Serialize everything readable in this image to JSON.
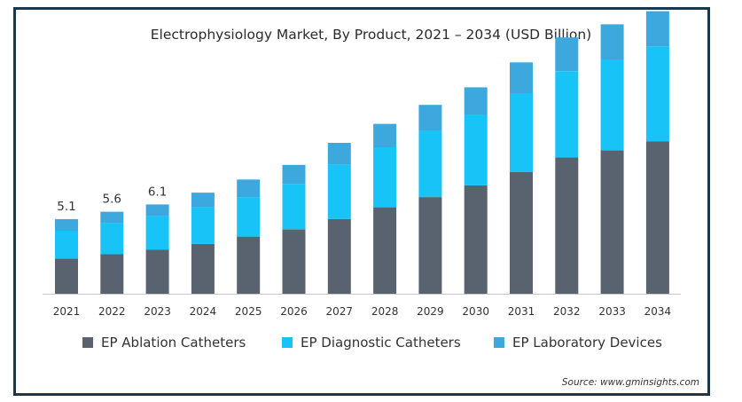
{
  "chart_data": {
    "type": "bar",
    "stacked": true,
    "title": "Electrophysiology Market, By Product, 2021 – 2034 (USD Billion)",
    "categories": [
      "2021",
      "2022",
      "2023",
      "2024",
      "2025",
      "2026",
      "2027",
      "2028",
      "2029",
      "2030",
      "2031",
      "2032",
      "2033",
      "2034"
    ],
    "series": [
      {
        "name": "EP Ablation Catheters",
        "color": "#596370",
        "values": [
          2.4,
          2.7,
          3.0,
          3.4,
          3.9,
          4.4,
          5.1,
          5.9,
          6.6,
          7.4,
          8.3,
          9.3,
          9.8,
          10.4
        ]
      },
      {
        "name": "EP Diagnostic Catheters",
        "color": "#17c3f7",
        "values": [
          1.9,
          2.1,
          2.3,
          2.5,
          2.7,
          3.1,
          3.7,
          4.1,
          4.5,
          4.8,
          5.4,
          5.9,
          6.2,
          6.5
        ]
      },
      {
        "name": "EP Laboratory Devices",
        "color": "#3da8dd",
        "values": [
          0.8,
          0.8,
          0.8,
          1.0,
          1.2,
          1.3,
          1.5,
          1.6,
          1.8,
          1.9,
          2.1,
          2.3,
          2.4,
          2.4
        ]
      }
    ],
    "data_labels": [
      {
        "category": "2021",
        "text": "5.1"
      },
      {
        "category": "2022",
        "text": "5.6"
      },
      {
        "category": "2023",
        "text": "6.1"
      }
    ],
    "ylim": [
      0,
      20
    ],
    "xlabel": "",
    "ylabel": "",
    "grid": false,
    "legend_position": "bottom"
  },
  "source": "Source: www.gminsights.com",
  "colors": {
    "border": "#16394f",
    "axis": "#c8c8c8"
  }
}
